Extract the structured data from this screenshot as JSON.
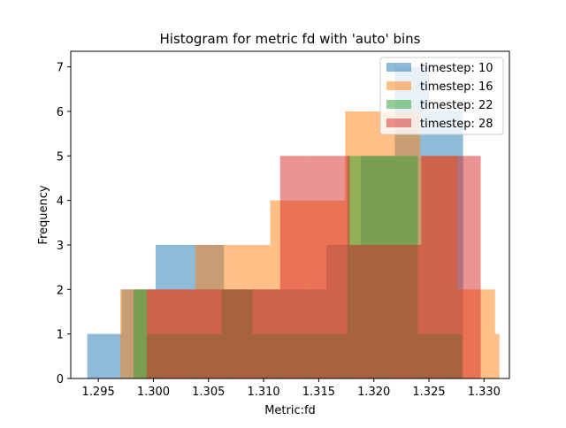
{
  "chart_data": {
    "type": "bar",
    "title": "Histogram for metric fd with 'auto' bins",
    "xlabel": "Metric:fd",
    "ylabel": "Frequency",
    "xlim": [
      1.2925,
      1.3323
    ],
    "ylim": [
      0,
      7.35
    ],
    "xticks": [
      1.295,
      1.3,
      1.305,
      1.31,
      1.315,
      1.32,
      1.325,
      1.33
    ],
    "xtick_labels": [
      "1.295",
      "1.300",
      "1.305",
      "1.310",
      "1.315",
      "1.320",
      "1.325",
      "1.330"
    ],
    "yticks": [
      0,
      1,
      2,
      3,
      4,
      5,
      6,
      7
    ],
    "ytick_labels": [
      "0",
      "1",
      "2",
      "3",
      "4",
      "5",
      "6",
      "7"
    ],
    "grid": false,
    "legend_position": "top-right",
    "series": [
      {
        "name": "timestep: 10",
        "color": "#1f77b4",
        "opacity": 0.5,
        "bins": [
          {
            "x0": 1.294,
            "x1": 1.2971,
            "count": 1
          },
          {
            "x0": 1.2971,
            "x1": 1.3002,
            "count": 2
          },
          {
            "x0": 1.3002,
            "x1": 1.3033,
            "count": 3
          },
          {
            "x0": 1.3033,
            "x1": 1.3064,
            "count": 3
          },
          {
            "x0": 1.3064,
            "x1": 1.3095,
            "count": 2
          },
          {
            "x0": 1.3095,
            "x1": 1.3126,
            "count": 2
          },
          {
            "x0": 1.3126,
            "x1": 1.3157,
            "count": 2
          },
          {
            "x0": 1.3157,
            "x1": 1.3188,
            "count": 3
          },
          {
            "x0": 1.3188,
            "x1": 1.3219,
            "count": 5
          },
          {
            "x0": 1.3219,
            "x1": 1.325,
            "count": 7
          },
          {
            "x0": 1.325,
            "x1": 1.3281,
            "count": 6
          }
        ]
      },
      {
        "name": "timestep: 16",
        "color": "#ff7f0e",
        "opacity": 0.5,
        "bins": [
          {
            "x0": 1.297,
            "x1": 1.3004,
            "count": 2
          },
          {
            "x0": 1.3004,
            "x1": 1.3038,
            "count": 2
          },
          {
            "x0": 1.3038,
            "x1": 1.3072,
            "count": 3
          },
          {
            "x0": 1.3072,
            "x1": 1.3106,
            "count": 3
          },
          {
            "x0": 1.3106,
            "x1": 1.314,
            "count": 4
          },
          {
            "x0": 1.314,
            "x1": 1.3174,
            "count": 4
          },
          {
            "x0": 1.3174,
            "x1": 1.3208,
            "count": 6
          },
          {
            "x0": 1.3208,
            "x1": 1.3242,
            "count": 6
          },
          {
            "x0": 1.3242,
            "x1": 1.3276,
            "count": 5
          },
          {
            "x0": 1.3276,
            "x1": 1.331,
            "count": 2
          },
          {
            "x0": 1.331,
            "x1": 1.3314,
            "count": 1
          }
        ]
      },
      {
        "name": "timestep: 22",
        "color": "#2ca02c",
        "opacity": 0.5,
        "bins": [
          {
            "x0": 1.2982,
            "x1": 1.2994,
            "count": 2
          },
          {
            "x0": 1.2994,
            "x1": 1.3062,
            "count": 1
          },
          {
            "x0": 1.3062,
            "x1": 1.309,
            "count": 2
          },
          {
            "x0": 1.309,
            "x1": 1.3176,
            "count": 1
          },
          {
            "x0": 1.3176,
            "x1": 1.3214,
            "count": 5
          },
          {
            "x0": 1.3214,
            "x1": 1.324,
            "count": 5
          },
          {
            "x0": 1.324,
            "x1": 1.328,
            "count": 1
          }
        ]
      },
      {
        "name": "timestep: 28",
        "color": "#d62728",
        "opacity": 0.5,
        "bins": [
          {
            "x0": 1.2994,
            "x1": 1.3006,
            "count": 2
          },
          {
            "x0": 1.3006,
            "x1": 1.3115,
            "count": 2
          },
          {
            "x0": 1.3115,
            "x1": 1.3143,
            "count": 5
          },
          {
            "x0": 1.3143,
            "x1": 1.317,
            "count": 5
          },
          {
            "x0": 1.317,
            "x1": 1.3178,
            "count": 5
          },
          {
            "x0": 1.3178,
            "x1": 1.3205,
            "count": 3
          },
          {
            "x0": 1.3205,
            "x1": 1.3243,
            "count": 3
          },
          {
            "x0": 1.3243,
            "x1": 1.327,
            "count": 5
          },
          {
            "x0": 1.327,
            "x1": 1.3286,
            "count": 5
          },
          {
            "x0": 1.3286,
            "x1": 1.3297,
            "count": 5
          }
        ]
      }
    ]
  }
}
